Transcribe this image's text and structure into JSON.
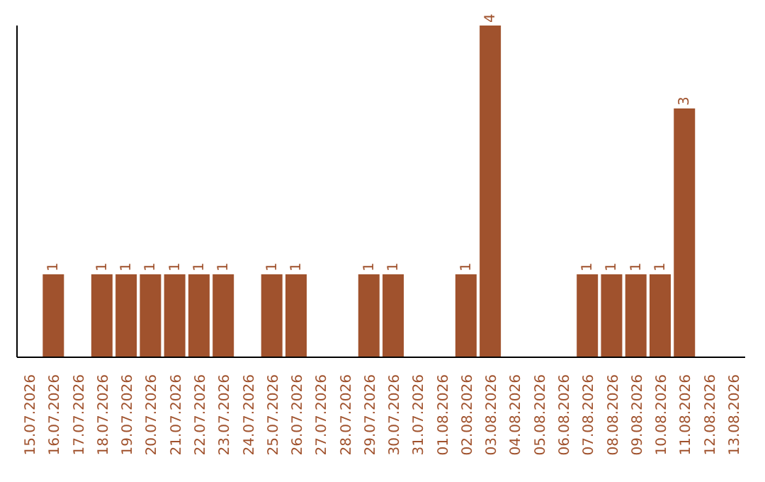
{
  "chart_data": {
    "type": "bar",
    "categories": [
      "15.07.2026",
      "16.07.2026",
      "17.07.2026",
      "18.07.2026",
      "19.07.2026",
      "20.07.2026",
      "21.07.2026",
      "22.07.2026",
      "23.07.2026",
      "24.07.2026",
      "25.07.2026",
      "26.07.2026",
      "27.07.2026",
      "28.07.2026",
      "29.07.2026",
      "30.07.2026",
      "31.07.2026",
      "01.08.2026",
      "02.08.2026",
      "03.08.2026",
      "04.08.2026",
      "05.08.2026",
      "06.08.2026",
      "07.08.2026",
      "08.08.2026",
      "09.08.2026",
      "10.08.2026",
      "11.08.2026",
      "12.08.2026",
      "13.08.2026"
    ],
    "values": [
      null,
      1,
      null,
      1,
      1,
      1,
      1,
      1,
      1,
      null,
      1,
      1,
      null,
      null,
      1,
      1,
      null,
      null,
      1,
      4,
      null,
      null,
      null,
      1,
      1,
      1,
      1,
      3,
      null,
      null
    ],
    "color": "#a0522d",
    "data_labels": true,
    "tick_labels": "x"
  }
}
